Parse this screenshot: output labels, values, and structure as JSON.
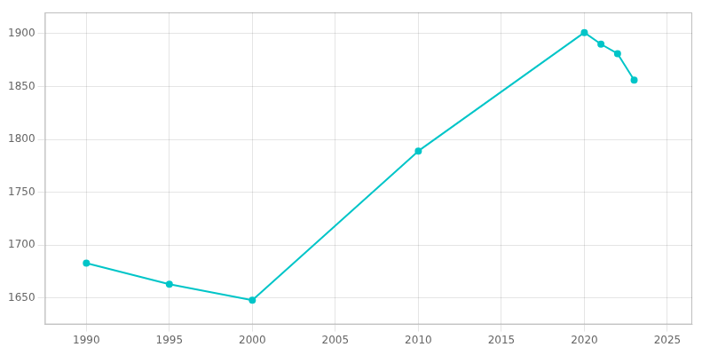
{
  "chart_data": {
    "type": "line",
    "x": [
      1990,
      1995,
      2000,
      2010,
      2020,
      2021,
      2022,
      2023
    ],
    "values": [
      1683,
      1663,
      1648,
      1789,
      1901,
      1890,
      1881,
      1856
    ],
    "color": "#00c5c8",
    "marker": "circle",
    "xlim": [
      1987.5,
      2026.5
    ],
    "ylim": [
      1625,
      1920
    ],
    "xticks": [
      1990,
      1995,
      2000,
      2005,
      2010,
      2015,
      2020,
      2025
    ],
    "yticks": [
      1650,
      1700,
      1750,
      1800,
      1850,
      1900
    ],
    "grid": true
  }
}
